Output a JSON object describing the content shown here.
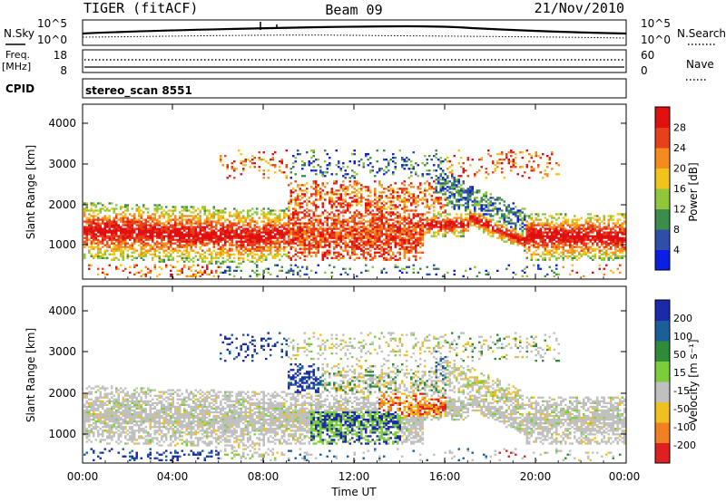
{
  "header": {
    "radar": "TIGER (fitACF)",
    "beam": "Beam 09",
    "date": "21/Nov/2010"
  },
  "nsky_panel": {
    "left_label": "N.Sky",
    "right_label": "N.Search",
    "left_ticks": [
      "10^5",
      "10^0"
    ],
    "right_ticks": [
      "10^5",
      "10^0"
    ]
  },
  "freq_panel": {
    "left_label_1": "Freq.",
    "left_label_2": "[MHz]",
    "right_label": "Nave",
    "left_ticks": [
      "18",
      "8"
    ],
    "right_ticks": [
      "60",
      "0"
    ]
  },
  "cpid_panel": {
    "label": "CPID",
    "value": "stereo_scan 8551"
  },
  "chart_data": [
    {
      "type": "heatmap",
      "title": "Power",
      "ylabel": "Slant Range [km]",
      "xlabel": "",
      "ylim": [
        180,
        4500
      ],
      "yticks": [
        "1000",
        "2000",
        "3000",
        "4000"
      ],
      "colorbar_label": "Power [dB]",
      "colorbar_ticks": [
        "4",
        "8",
        "12",
        "16",
        "20",
        "24",
        "28"
      ],
      "colorbar_colors": [
        "#0b1ee6",
        "#2e4fa8",
        "#3c8c4a",
        "#8fc63c",
        "#f1c419",
        "#f58a1f",
        "#e8401c",
        "#e01010"
      ]
    },
    {
      "type": "heatmap",
      "title": "Velocity",
      "ylabel": "Slant Range [km]",
      "xlabel": "Time UT",
      "ylim": [
        180,
        4500
      ],
      "yticks": [
        "1000",
        "2000",
        "3000",
        "4000"
      ],
      "xticks": [
        "00:00",
        "04:00",
        "08:00",
        "12:00",
        "16:00",
        "20:00",
        "00:00"
      ],
      "colorbar_label": "Velocity [m s⁻¹]",
      "colorbar_ticks": [
        "200",
        "100",
        "50",
        "15",
        "-15",
        "-50",
        "-100",
        "-200"
      ],
      "colorbar_colors": [
        "#1a2aa8",
        "#1a5f9a",
        "#2f8a3a",
        "#7ccd3a",
        "#c0c0c0",
        "#f0c020",
        "#f08020",
        "#e02020"
      ]
    }
  ]
}
